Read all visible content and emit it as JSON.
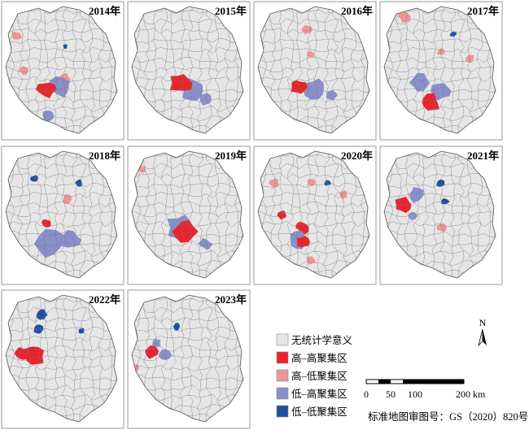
{
  "panels": [
    {
      "year": "2014年"
    },
    {
      "year": "2015年"
    },
    {
      "year": "2016年"
    },
    {
      "year": "2017年"
    },
    {
      "year": "2018年"
    },
    {
      "year": "2019年"
    },
    {
      "year": "2020年"
    },
    {
      "year": "2021年"
    },
    {
      "year": "2022年"
    },
    {
      "year": "2023年"
    }
  ],
  "legend": {
    "items": [
      "无统计学意义",
      "高–高聚集区",
      "高–低聚集区",
      "低–高聚集区",
      "低–低聚集区"
    ]
  },
  "north": "N",
  "scale": {
    "labels": [
      "0",
      "50",
      "100",
      "200 km"
    ]
  },
  "map_number": "标准地图审图号：GS（2020）820号"
}
